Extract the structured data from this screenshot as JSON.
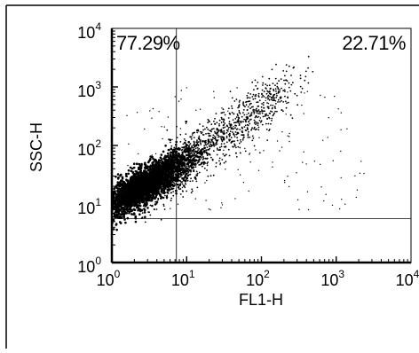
{
  "chart_data": {
    "type": "scatter",
    "title": "",
    "xlabel": "FL1-H",
    "ylabel": "SSC-H",
    "xscale": "log",
    "yscale": "log",
    "xlim": [
      1,
      10000
    ],
    "ylim": [
      1,
      10000
    ],
    "x_ticks": [
      {
        "base": "10",
        "exp": "0"
      },
      {
        "base": "10",
        "exp": "1"
      },
      {
        "base": "10",
        "exp": "2"
      },
      {
        "base": "10",
        "exp": "3"
      },
      {
        "base": "10",
        "exp": "4"
      }
    ],
    "y_ticks": [
      {
        "base": "10",
        "exp": "0"
      },
      {
        "base": "10",
        "exp": "1"
      },
      {
        "base": "10",
        "exp": "2"
      },
      {
        "base": "10",
        "exp": "3"
      },
      {
        "base": "10",
        "exp": "4"
      }
    ],
    "gates": {
      "vertical_x": 7.3,
      "horizontal_y": 5.6
    },
    "quadrant_labels": {
      "upper_left": "77.29%",
      "upper_right": "22.71%"
    },
    "grid": false,
    "legend": "none",
    "color": "#000000"
  }
}
